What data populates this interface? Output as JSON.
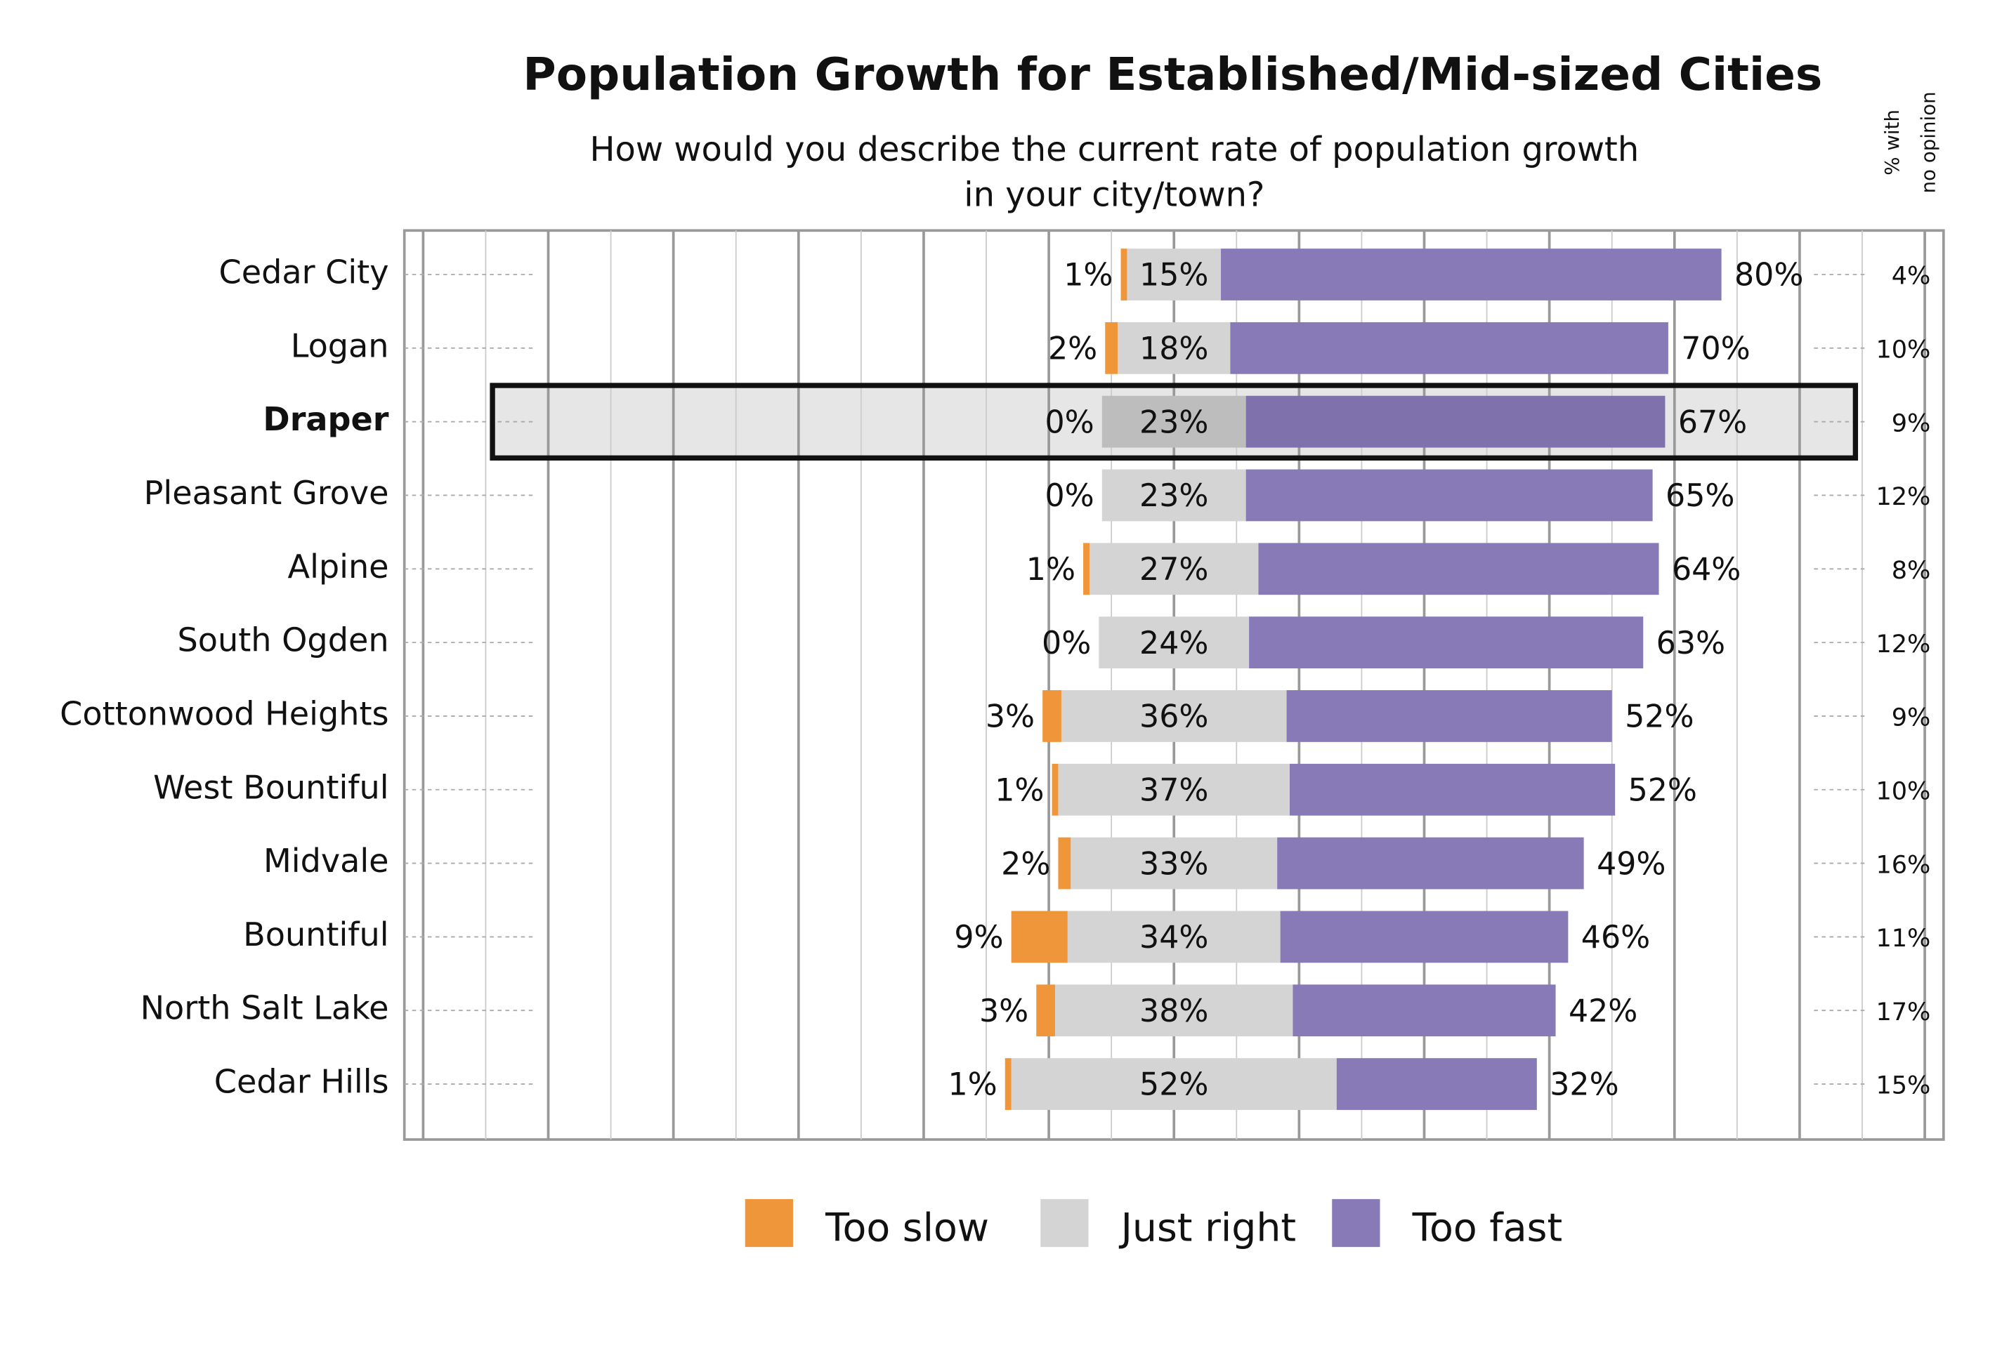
{
  "chart_data": {
    "type": "diverging_bar",
    "title": "Population Growth for Established/Mid-sized Cities",
    "subtitle": [
      "How would you describe the current rate of population growth",
      "in your city/town?"
    ],
    "side_header": [
      "% with",
      "no opinion"
    ],
    "categories": [
      "Cedar City",
      "Logan",
      "Draper",
      "Pleasant Grove",
      "Alpine",
      "South Ogden",
      "Cottonwood Heights",
      "West Bountiful",
      "Midvale",
      "Bountiful",
      "North Salt Lake",
      "Cedar Hills"
    ],
    "highlight": "Draper",
    "series": [
      {
        "name": "Too slow",
        "color": "#f0963a",
        "values": [
          1,
          2,
          0,
          0,
          1,
          0,
          3,
          1,
          2,
          9,
          3,
          1
        ],
        "value_labels": [
          "1%",
          "2%",
          "0%",
          "0%",
          "1%",
          "0%",
          "3%",
          "1%",
          "2%",
          "9%",
          "3%",
          "1%"
        ]
      },
      {
        "name": "Just right",
        "color": "#d4d4d4",
        "values": [
          15,
          18,
          23,
          23,
          27,
          24,
          36,
          37,
          33,
          34,
          38,
          52
        ],
        "value_labels": [
          "15%",
          "18%",
          "23%",
          "23%",
          "27%",
          "24%",
          "36%",
          "37%",
          "33%",
          "34%",
          "38%",
          "52%"
        ]
      },
      {
        "name": "Too fast",
        "color": "#877ab7",
        "values": [
          80,
          70,
          67,
          65,
          64,
          63,
          52,
          52,
          49,
          46,
          42,
          32
        ],
        "value_labels": [
          "80%",
          "70%",
          "67%",
          "65%",
          "64%",
          "63%",
          "52%",
          "52%",
          "49%",
          "46%",
          "42%",
          "32%"
        ]
      }
    ],
    "no_opinion": {
      "values": [
        4,
        10,
        9,
        12,
        8,
        12,
        9,
        10,
        16,
        11,
        17,
        15
      ],
      "value_labels": [
        "4%",
        "10%",
        "9%",
        "12%",
        "8%",
        "12%",
        "9%",
        "10%",
        "16%",
        "11%",
        "17%",
        "15%"
      ]
    },
    "xlim": [
      -123,
      123
    ],
    "xticks": [
      -120,
      -110,
      -100,
      -90,
      -80,
      -70,
      -60,
      -50,
      -40,
      -30,
      -20,
      -10,
      0,
      10,
      20,
      30,
      40,
      50,
      60,
      70,
      80,
      90,
      100,
      110,
      120
    ],
    "grid": true
  }
}
